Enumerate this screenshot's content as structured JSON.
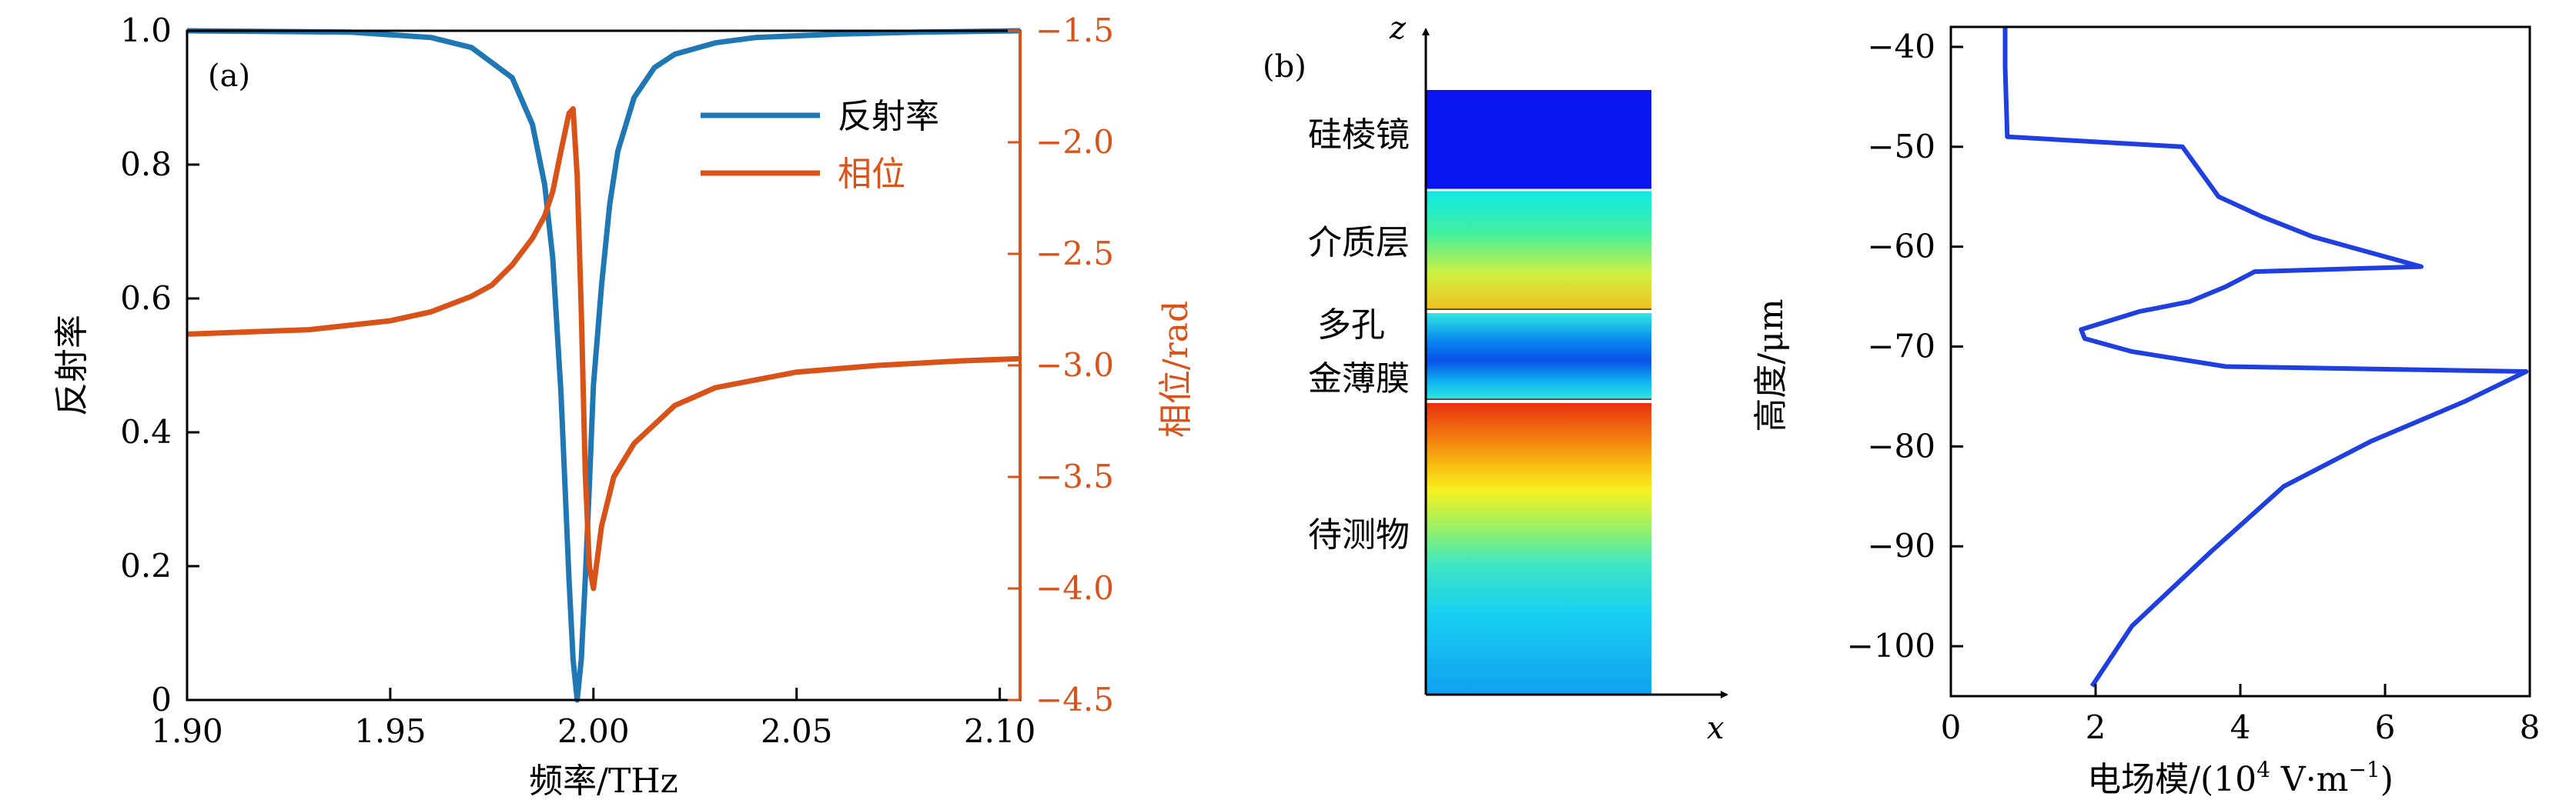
{
  "colors": {
    "reflectance": "#1f77b4",
    "phase": "#d95319",
    "field": "#1f3fe0",
    "axis": "#000000"
  },
  "chart_data": [
    {
      "panel_label": "(a)",
      "type": "line",
      "xlabel": "频率/THz",
      "ylabel_left": "反射率",
      "ylabel_right": "相位/rad",
      "xlim": [
        1.9,
        2.105
      ],
      "ylim_left": [
        0,
        1.0
      ],
      "ylim_right": [
        -4.5,
        -1.5
      ],
      "xticks": [
        "1.90",
        "1.95",
        "2.00",
        "2.05",
        "2.10"
      ],
      "yticks_left": [
        "0",
        "0.2",
        "0.4",
        "0.6",
        "0.8",
        "1.0"
      ],
      "yticks_right": [
        "−4.5",
        "−4.0",
        "−3.5",
        "−3.0",
        "−2.5",
        "−2.0",
        "−1.5"
      ],
      "legend_position": "top-right",
      "series": [
        {
          "name": "反射率",
          "axis": "left",
          "x": [
            1.9,
            1.94,
            1.96,
            1.97,
            1.98,
            1.985,
            1.988,
            1.99,
            1.992,
            1.993,
            1.994,
            1.995,
            1.996,
            1.997,
            1.998,
            1.999,
            2.0,
            2.002,
            2.004,
            2.006,
            2.01,
            2.015,
            2.02,
            2.03,
            2.04,
            2.06,
            2.08,
            2.105
          ],
          "y": [
            1.0,
            0.998,
            0.99,
            0.975,
            0.93,
            0.86,
            0.77,
            0.66,
            0.46,
            0.32,
            0.18,
            0.06,
            0.0,
            0.06,
            0.18,
            0.32,
            0.47,
            0.62,
            0.74,
            0.82,
            0.9,
            0.945,
            0.965,
            0.982,
            0.99,
            0.995,
            0.998,
            1.0
          ]
        },
        {
          "name": "相位",
          "axis": "right",
          "x": [
            1.9,
            1.93,
            1.95,
            1.96,
            1.97,
            1.975,
            1.98,
            1.985,
            1.988,
            1.99,
            1.992,
            1.994,
            1.995,
            1.996,
            1.997,
            1.998,
            1.999,
            2.0,
            2.002,
            2.005,
            2.01,
            2.02,
            2.03,
            2.05,
            2.07,
            2.09,
            2.105
          ],
          "y": [
            -2.86,
            -2.84,
            -2.8,
            -2.76,
            -2.69,
            -2.64,
            -2.55,
            -2.43,
            -2.33,
            -2.22,
            -2.04,
            -1.87,
            -1.85,
            -2.15,
            -2.75,
            -3.48,
            -3.9,
            -4.0,
            -3.72,
            -3.5,
            -3.35,
            -3.18,
            -3.1,
            -3.03,
            -3.0,
            -2.98,
            -2.97
          ]
        }
      ]
    },
    {
      "panel_label": "(b)",
      "type": "diagram",
      "axis_x": "x",
      "axis_z": "z",
      "layers": [
        "硅棱镜",
        "介质层",
        "多孔",
        "金薄膜",
        "待测物"
      ]
    },
    {
      "type": "line",
      "xlabel_pre": "电场模/(10",
      "xlabel_sup": "4",
      "xlabel_mid": " V·m",
      "xlabel_sup2": "−1",
      "xlabel_post": ")",
      "ylabel": "高度/μm",
      "xlim": [
        0,
        8
      ],
      "ylim": [
        -105,
        -38
      ],
      "xticks": [
        "0",
        "2",
        "4",
        "6",
        "8"
      ],
      "yticks": [
        "−40",
        "−50",
        "−60",
        "−70",
        "−80",
        "−90",
        "−100"
      ],
      "series": [
        {
          "x": [
            0.75,
            0.75,
            0.78,
            3.2,
            3.4,
            3.7,
            4.3,
            5.0,
            6.5,
            4.2,
            3.8,
            3.3,
            2.6,
            1.8,
            1.85,
            2.5,
            3.8,
            7.95,
            7.1,
            5.8,
            4.6,
            3.6,
            2.5,
            1.95
          ],
          "y": [
            -38,
            -42,
            -49,
            -50,
            -52,
            -55,
            -57,
            -59,
            -62,
            -62.5,
            -64,
            -65.5,
            -66.5,
            -68.3,
            -69.2,
            -70.5,
            -72,
            -72.5,
            -75.5,
            -79.5,
            -84,
            -90.5,
            -98,
            -104
          ]
        }
      ]
    }
  ]
}
